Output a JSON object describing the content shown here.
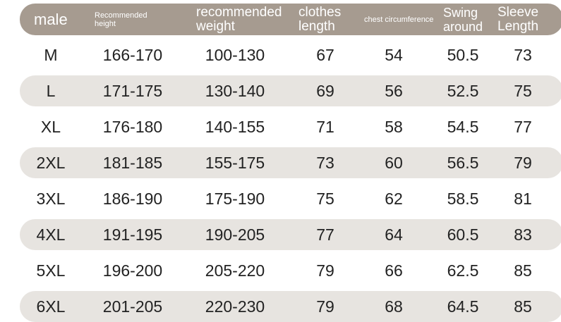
{
  "header": {
    "size": "male",
    "height": "Recommended height",
    "weight": "recommended weight",
    "length": "clothes length",
    "chest": "chest circumference",
    "swing": "Swing around",
    "sleeve": "Sleeve Length"
  },
  "colors": {
    "header_bg": "#a69b90",
    "stripe": "#e7e4e0"
  },
  "rows": [
    [
      "M",
      "166-170",
      "100-130",
      "67",
      "54",
      "50.5",
      "73"
    ],
    [
      "L",
      "171-175",
      "130-140",
      "69",
      "56",
      "52.5",
      "75"
    ],
    [
      "XL",
      "176-180",
      "140-155",
      "71",
      "58",
      "54.5",
      "77"
    ],
    [
      "2XL",
      "181-185",
      "155-175",
      "73",
      "60",
      "56.5",
      "79"
    ],
    [
      "3XL",
      "186-190",
      "175-190",
      "75",
      "62",
      "58.5",
      "81"
    ],
    [
      "4XL",
      "191-195",
      "190-205",
      "77",
      "64",
      "60.5",
      "83"
    ],
    [
      "5XL",
      "196-200",
      "205-220",
      "79",
      "66",
      "62.5",
      "85"
    ],
    [
      "6XL",
      "201-205",
      "220-230",
      "79",
      "68",
      "64.5",
      "85"
    ]
  ]
}
